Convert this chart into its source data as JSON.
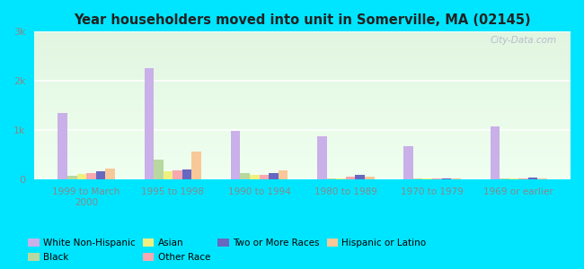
{
  "title": "Year householders moved into unit in Somerville, MA (02145)",
  "categories": [
    "1999 to March\n2000",
    "1995 to 1998",
    "1990 to 1994",
    "1980 to 1989",
    "1970 to 1979",
    "1969 or earlier"
  ],
  "series_order": [
    "White Non-Hispanic",
    "Black",
    "Asian",
    "Other Race",
    "Two or More Races",
    "Hispanic or Latino"
  ],
  "series": {
    "White Non-Hispanic": [
      1350,
      2250,
      980,
      870,
      670,
      1080
    ],
    "Black": [
      70,
      400,
      130,
      20,
      10,
      10
    ],
    "Asian": [
      100,
      150,
      80,
      20,
      5,
      5
    ],
    "Other Race": [
      120,
      170,
      90,
      40,
      5,
      5
    ],
    "Two or More Races": [
      150,
      200,
      120,
      80,
      5,
      30
    ],
    "Hispanic or Latino": [
      210,
      560,
      185,
      55,
      5,
      5
    ]
  },
  "colors": {
    "White Non-Hispanic": "#c9b0e8",
    "Black": "#b8d8a0",
    "Asian": "#f0f080",
    "Other Race": "#f8a8b0",
    "Two or More Races": "#6868c0",
    "Hispanic or Latino": "#f8c898"
  },
  "ylim": [
    0,
    3000
  ],
  "yticks": [
    0,
    1000,
    2000,
    3000
  ],
  "ytick_labels": [
    "0",
    "1k",
    "2k",
    "3k"
  ],
  "outer_bg": "#00e5ff",
  "watermark": "City-Data.com",
  "legend_row1": [
    "White Non-Hispanic",
    "Black",
    "Asian",
    "Other Race"
  ],
  "legend_row2": [
    "Two or More Races",
    "Hispanic or Latino"
  ]
}
